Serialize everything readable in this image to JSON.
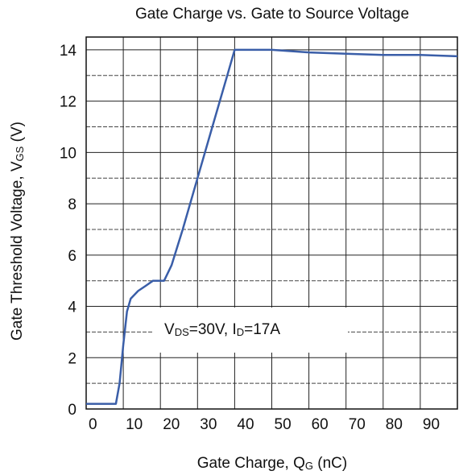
{
  "chart_data": {
    "type": "line",
    "title": "Gate Charge vs. Gate to Source Voltage",
    "xlabel": {
      "parts": [
        "Gate Charge, Q",
        "G",
        " (nC)"
      ],
      "subscript": [
        false,
        true,
        false
      ]
    },
    "ylabel": {
      "parts": [
        "Gate Threshold Voltage, V",
        "GS",
        " (V)"
      ],
      "subscript": [
        false,
        true,
        false
      ]
    },
    "annotation": {
      "parts": [
        "V",
        "DS",
        "=30V, I",
        "D",
        "=17A"
      ],
      "subscript": [
        false,
        true,
        false,
        true,
        false
      ]
    },
    "xlim": [
      0,
      100
    ],
    "xticks": [
      0,
      10,
      20,
      30,
      40,
      50,
      60,
      70,
      80,
      90
    ],
    "ylim": [
      0,
      14.5
    ],
    "yticks": [
      0,
      2,
      4,
      6,
      8,
      10,
      12,
      14
    ],
    "grid": true,
    "series": [
      {
        "color": "#3a5ea8",
        "x": [
          0,
          8,
          9,
          10,
          11,
          12,
          14,
          16,
          18,
          21,
          23,
          26,
          30,
          34,
          38,
          40,
          50,
          60,
          70,
          80,
          90,
          100
        ],
        "values": [
          0.2,
          0.2,
          1,
          2.5,
          3.8,
          4.3,
          4.6,
          4.8,
          5,
          5,
          5.6,
          7,
          9,
          11,
          13,
          14,
          14,
          13.9,
          13.85,
          13.8,
          13.8,
          13.75
        ]
      }
    ]
  }
}
